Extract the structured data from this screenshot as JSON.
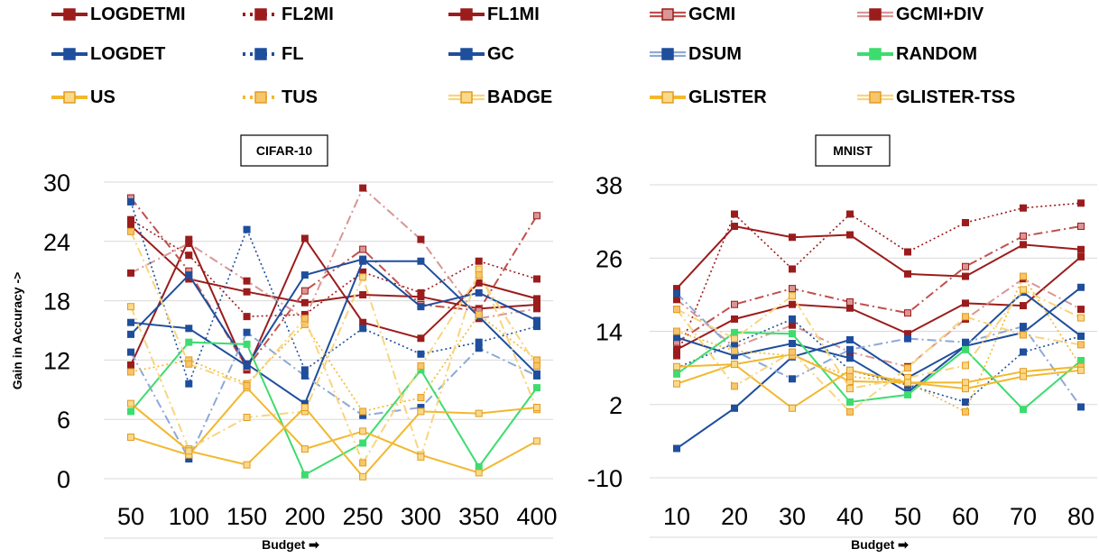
{
  "legend": [
    {
      "name": "LOGDETMI",
      "color": "#9b1c1c",
      "dash": "solid",
      "marker": "#9b1c1c",
      "markerFill": "#9b1c1c"
    },
    {
      "name": "FL2MI",
      "color": "#9b1c1c",
      "dash": "dot",
      "marker": "#9b1c1c",
      "markerFill": "#9b1c1c"
    },
    {
      "name": "FL1MI",
      "color": "#9b1c1c",
      "dash": "solid",
      "marker": "#9b1c1c",
      "markerFill": "#9b1c1c"
    },
    {
      "name": "GCMI",
      "color": "#c0504d",
      "dash": "double",
      "marker": "#9b1c1c",
      "markerFill": "#d99694"
    },
    {
      "name": "GCMI+DIV",
      "color": "#d99694",
      "dash": "double",
      "marker": "#9b1c1c",
      "markerFill": "#9b1c1c"
    },
    {
      "name": "LOGDET",
      "color": "#1f4e9c",
      "dash": "solid",
      "marker": "#1f4e9c",
      "markerFill": "#1f4e9c"
    },
    {
      "name": "FL",
      "color": "#1f4e9c",
      "dash": "dot",
      "marker": "#1f4e9c",
      "markerFill": "#1f4e9c"
    },
    {
      "name": "GC",
      "color": "#1f4e9c",
      "dash": "solid",
      "marker": "#1f4e9c",
      "markerFill": "#1f4e9c"
    },
    {
      "name": "DSUM",
      "color": "#8ea9d6",
      "dash": "double",
      "marker": "#1f4e9c",
      "markerFill": "#1f4e9c"
    },
    {
      "name": "RANDOM",
      "color": "#3ddc6e",
      "dash": "solid",
      "marker": "#3ddc6e",
      "markerFill": "#3ddc6e"
    },
    {
      "name": "US",
      "color": "#f2b82e",
      "dash": "solid",
      "marker": "#e39b1e",
      "markerFill": "#f9d98a"
    },
    {
      "name": "TUS",
      "color": "#f2b82e",
      "dash": "dot",
      "marker": "#e39b1e",
      "markerFill": "#f7c56a"
    },
    {
      "name": "BADGE",
      "color": "#f7d580",
      "dash": "double",
      "marker": "#e39b1e",
      "markerFill": "#f9d98a"
    },
    {
      "name": "GLISTER",
      "color": "#f2b82e",
      "dash": "solid",
      "marker": "#e39b1e",
      "markerFill": "#f9d98a"
    },
    {
      "name": "GLISTER-TSS",
      "color": "#f7d580",
      "dash": "double",
      "marker": "#e39b1e",
      "markerFill": "#f7c56a"
    }
  ],
  "chart_data": [
    {
      "type": "line",
      "title": "CIFAR-10",
      "xlabel": "Budget ➡",
      "ylabel": "Gain in Accuracy ->",
      "categories": [
        "50",
        "100",
        "150",
        "200",
        "250",
        "300",
        "350",
        "400"
      ],
      "ylim": [
        0,
        30
      ],
      "yticks": [
        "0",
        "6",
        "12",
        "18",
        "24",
        "30"
      ],
      "series": [
        {
          "name": "LOGDETMI",
          "values": [
            25.6,
            20.2,
            18.9,
            17.8,
            18.6,
            18.4,
            17.2,
            17.6
          ]
        },
        {
          "name": "FL2MI",
          "values": [
            26.2,
            22.6,
            16.4,
            16.6,
            20.9,
            18.8,
            22.0,
            20.2
          ]
        },
        {
          "name": "FL1MI",
          "values": [
            11.5,
            24.2,
            11.0,
            24.3,
            15.8,
            14.2,
            19.8,
            18.2
          ]
        },
        {
          "name": "GCMI",
          "values": [
            28.4,
            21.0,
            11.2,
            19.0,
            23.2,
            17.6,
            17.0,
            26.6
          ]
        },
        {
          "name": "GCMI+DIV",
          "values": [
            20.8,
            23.8,
            20.0,
            16.2,
            29.4,
            24.2,
            16.2,
            17.2
          ]
        },
        {
          "name": "LOGDET",
          "values": [
            14.6,
            20.6,
            11.6,
            7.6,
            22.0,
            22.0,
            16.4,
            10.6
          ]
        },
        {
          "name": "FL",
          "values": [
            28.0,
            9.6,
            25.2,
            11.0,
            15.2,
            12.6,
            13.8,
            15.4
          ]
        },
        {
          "name": "GC",
          "values": [
            15.8,
            15.2,
            11.4,
            20.6,
            22.2,
            17.4,
            18.8,
            16.0
          ]
        },
        {
          "name": "DSUM",
          "values": [
            12.8,
            2.0,
            14.8,
            10.4,
            6.4,
            7.2,
            13.2,
            10.4
          ]
        },
        {
          "name": "RANDOM",
          "values": [
            6.8,
            13.8,
            13.6,
            0.4,
            3.6,
            11.0,
            1.2,
            9.2
          ]
        },
        {
          "name": "US",
          "values": [
            4.2,
            2.4,
            9.2,
            3.0,
            4.8,
            2.4,
            0.6,
            3.8
          ]
        },
        {
          "name": "TUS",
          "values": [
            10.8,
            12.0,
            9.6,
            15.6,
            6.8,
            8.2,
            16.6,
            12.0
          ]
        },
        {
          "name": "BADGE",
          "values": [
            17.4,
            3.0,
            6.2,
            6.8,
            20.4,
            2.2,
            21.2,
            7.0
          ]
        },
        {
          "name": "GLISTER",
          "values": [
            7.6,
            2.8,
            1.4,
            7.2,
            0.2,
            6.8,
            6.6,
            7.2
          ]
        },
        {
          "name": "GLISTER-TSS",
          "values": [
            25.0,
            11.6,
            9.4,
            16.2,
            1.6,
            11.4,
            20.6,
            11.4
          ]
        }
      ]
    },
    {
      "type": "line",
      "title": "MNIST",
      "xlabel": "Budget ➡",
      "ylabel": "",
      "categories": [
        "10",
        "20",
        "30",
        "40",
        "50",
        "60",
        "70",
        "80"
      ],
      "ylim": [
        -10,
        38
      ],
      "yticks": [
        "-10",
        "2",
        "14",
        "26",
        "38"
      ],
      "series": [
        {
          "name": "LOGDETMI",
          "values": [
            11.0,
            16.0,
            18.4,
            17.8,
            13.6,
            18.6,
            18.2,
            26.2
          ]
        },
        {
          "name": "FL2MI",
          "values": [
            10.0,
            33.2,
            24.2,
            33.2,
            27.0,
            31.8,
            34.2,
            35.0
          ]
        },
        {
          "name": "FL1MI",
          "values": [
            21.0,
            31.2,
            29.4,
            29.8,
            23.4,
            23.0,
            28.2,
            27.4
          ]
        },
        {
          "name": "GCMI",
          "values": [
            12.2,
            18.4,
            21.0,
            18.8,
            17.0,
            24.6,
            29.6,
            31.2
          ]
        },
        {
          "name": "GCMI+DIV",
          "values": [
            19.2,
            11.4,
            15.0,
            10.6,
            8.2,
            16.0,
            22.6,
            17.6
          ]
        },
        {
          "name": "LOGDET",
          "values": [
            -5.2,
            1.4,
            9.8,
            12.6,
            6.4,
            11.6,
            13.8,
            21.2
          ]
        },
        {
          "name": "FL",
          "values": [
            8.0,
            12.0,
            16.0,
            7.6,
            5.2,
            2.4,
            10.6,
            13.2
          ]
        },
        {
          "name": "GC",
          "values": [
            13.0,
            10.0,
            12.0,
            9.6,
            4.0,
            11.6,
            20.4,
            13.2
          ]
        },
        {
          "name": "DSUM",
          "values": [
            20.2,
            10.8,
            6.2,
            11.0,
            12.8,
            12.2,
            14.8,
            1.6
          ]
        },
        {
          "name": "RANDOM",
          "values": [
            7.0,
            13.8,
            13.6,
            2.4,
            3.6,
            11.0,
            1.2,
            9.2
          ]
        },
        {
          "name": "US",
          "values": [
            8.2,
            8.6,
            10.2,
            5.8,
            5.6,
            5.6,
            7.4,
            8.2
          ]
        },
        {
          "name": "TUS",
          "values": [
            14.0,
            10.8,
            10.0,
            6.6,
            5.6,
            0.8,
            23.0,
            8.2
          ]
        },
        {
          "name": "BADGE",
          "values": [
            17.6,
            12.8,
            19.8,
            4.6,
            6.4,
            8.4,
            20.8,
            16.2
          ]
        },
        {
          "name": "GLISTER",
          "values": [
            5.4,
            8.6,
            1.4,
            7.6,
            5.6,
            4.6,
            6.6,
            7.6
          ]
        },
        {
          "name": "GLISTER-TSS",
          "values": [
            17.6,
            5.0,
            10.6,
            0.8,
            8.0,
            16.4,
            13.4,
            11.8
          ]
        }
      ]
    }
  ]
}
